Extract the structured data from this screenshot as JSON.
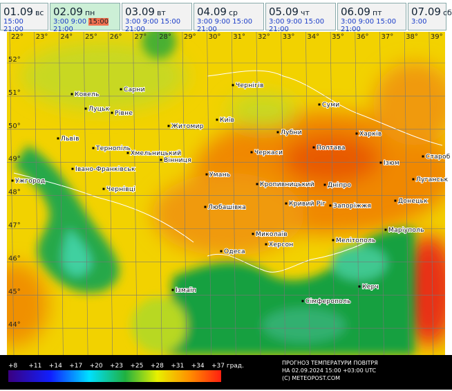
{
  "tabs": [
    {
      "date": "01.09",
      "day": "вс",
      "times": [
        "15:00",
        "21:00"
      ]
    },
    {
      "date": "02.09",
      "day": "пн",
      "times": [
        "3:00 9:00",
        "15:00",
        "21:00"
      ]
    },
    {
      "date": "03.09",
      "day": "вт",
      "times": [
        "3:00 9:00 15:00",
        "21:00"
      ]
    },
    {
      "date": "04.09",
      "day": "ср",
      "times": [
        "3:00 9:00 15:00",
        "21:00"
      ]
    },
    {
      "date": "05.09",
      "day": "чт",
      "times": [
        "3:00 9:00 15:00",
        "21:00"
      ]
    },
    {
      "date": "06.09",
      "day": "пт",
      "times": [
        "3:00 9:00 15:00",
        "21:00"
      ]
    },
    {
      "date": "07.09",
      "day": "сб",
      "times": [
        "3:00"
      ]
    }
  ],
  "longitudes": [
    "22°",
    "23°",
    "24°",
    "25°",
    "26°",
    "27°",
    "28°",
    "29°",
    "30°",
    "31°",
    "32°",
    "33°",
    "34°",
    "35°",
    "36°",
    "37°",
    "38°",
    "39°"
  ],
  "latitudes": [
    "52°",
    "51°",
    "50°",
    "49°",
    "48°",
    "47°",
    "46°",
    "45°",
    "44°"
  ],
  "cities": [
    "Ковель",
    "Сарни",
    "Чернігів",
    "Луцьк",
    "Рівне",
    "Суми",
    "Житомир",
    "Київ",
    "Львів",
    "Тернопіль",
    "Хмельницький",
    "Вінниця",
    "Черкаси",
    "Лубни",
    "Полтава",
    "Харків",
    "Ізюм",
    "Староб",
    "Луганськ",
    "Ужгород",
    "Івано-Франківськ",
    "Чернівці",
    "Умань",
    "Кропивницький",
    "Дніпро",
    "Донецьк",
    "Кривий Ріг",
    "Запоріжжя",
    "Любашівка",
    "Миколаїв",
    "Маріуполь",
    "Херсон",
    "Мелітополь",
    "Одеса",
    "Ізмаїл",
    "Керч",
    "Сімферополь"
  ],
  "legend": [
    "+8",
    "+11",
    "+14",
    "+17",
    "+20",
    "+23",
    "+25",
    "+28",
    "+31",
    "+34",
    "+37 град."
  ],
  "footer": [
    "ПРОГНОЗ ТЕМПЕРАТУРИ ПОВІТРЯ",
    "НА 02.09.2024 15:00 +03:00 UTC",
    "(C) METEOPOST.COM"
  ]
}
